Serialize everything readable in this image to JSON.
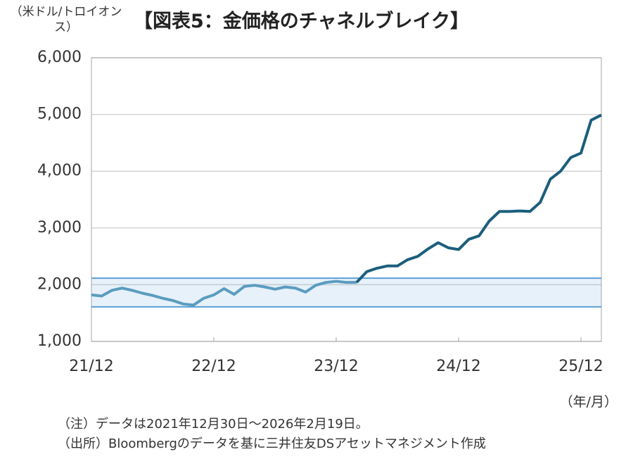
{
  "chart_data": {
    "type": "line",
    "title": "【図表5：金価格のチャネルブレイク】",
    "y_label": "（米ドル/トロイオンス）",
    "x_label": "（年/月）",
    "notes": [
      "（注）データは2021年12月30日～2026年2月19日。",
      "（出所）Bloombergのデータを基に三井住友DSアセットマネジメント作成"
    ],
    "x": [
      "21/12",
      "22/01",
      "22/02",
      "22/03",
      "22/04",
      "22/05",
      "22/06",
      "22/07",
      "22/08",
      "22/09",
      "22/10",
      "22/11",
      "22/12",
      "23/01",
      "23/02",
      "23/03",
      "23/04",
      "23/05",
      "23/06",
      "23/07",
      "23/08",
      "23/09",
      "23/10",
      "23/11",
      "23/12",
      "24/01",
      "24/02",
      "24/03",
      "24/04",
      "24/05",
      "24/06",
      "24/07",
      "24/08",
      "24/09",
      "24/10",
      "24/11",
      "24/12",
      "25/01",
      "25/02",
      "25/03",
      "25/04",
      "25/05",
      "25/06",
      "25/07",
      "25/08",
      "25/09",
      "25/10",
      "25/11",
      "25/12",
      "26/01",
      "26/02"
    ],
    "series": [
      {
        "color": "#5b9cc0",
        "values": [
          1820,
          1800,
          1900,
          1940,
          1900,
          1850,
          1810,
          1760,
          1720,
          1660,
          1640,
          1760,
          1820,
          1930,
          1830,
          1970,
          1990,
          1960,
          1920,
          1960,
          1940,
          1870,
          1990,
          2040,
          2060,
          2040,
          2040,
          null,
          null,
          null,
          null,
          null,
          null,
          null,
          null,
          null,
          null,
          null,
          null,
          null,
          null,
          null,
          null,
          null,
          null,
          null,
          null,
          null,
          null,
          null,
          null
        ]
      },
      {
        "color": "#1b5e7b",
        "values": [
          null,
          null,
          null,
          null,
          null,
          null,
          null,
          null,
          null,
          null,
          null,
          null,
          null,
          null,
          null,
          null,
          null,
          null,
          null,
          null,
          null,
          null,
          null,
          null,
          null,
          null,
          2040,
          2230,
          2290,
          2330,
          2330,
          2440,
          2500,
          2630,
          2740,
          2650,
          2620,
          2800,
          2860,
          3120,
          3290,
          3290,
          3300,
          3290,
          3450,
          3860,
          4000,
          4240,
          4320,
          4900,
          4990
        ]
      }
    ],
    "band": [
      1610,
      2115
    ],
    "band_color": "#5b9fd6",
    "xlim": [
      "21/12",
      "26/02"
    ],
    "xticks": [
      "21/12",
      "22/12",
      "23/12",
      "24/12",
      "25/12"
    ],
    "ylim": [
      1000,
      6000
    ],
    "yticks": [
      {
        "value": 1000,
        "label": "1,000"
      },
      {
        "value": 2000,
        "label": "2,000"
      },
      {
        "value": 3000,
        "label": "3,000"
      },
      {
        "value": 4000,
        "label": "4,000"
      },
      {
        "value": 5000,
        "label": "5,000"
      },
      {
        "value": 6000,
        "label": "6,000"
      }
    ],
    "grid": true
  }
}
